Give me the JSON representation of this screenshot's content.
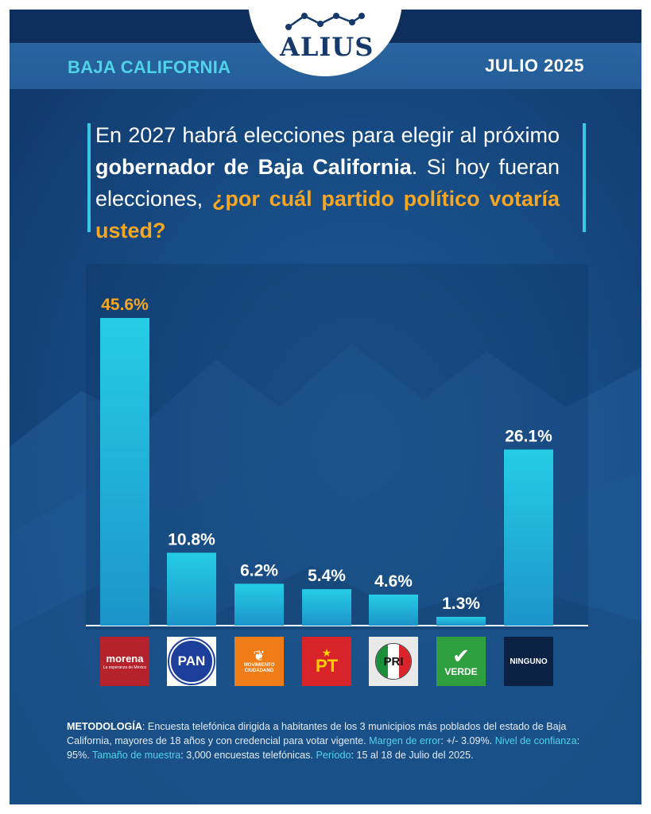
{
  "header": {
    "brand": "ALIUS",
    "region": "BAJA CALIFORNIA",
    "date": "JULIO 2025"
  },
  "question": {
    "part1": "En 2027 habrá elecciones para elegir al próximo ",
    "bold": "gobernador de Baja California",
    "part2": ". Si hoy fueran elecciones, ",
    "highlight": "¿por cuál partido político votaría usted?"
  },
  "chart_data": {
    "type": "bar",
    "categories": [
      "morena",
      "PAN",
      "MOVIMIENTO CIUDADANO",
      "PT",
      "PRI",
      "VERDE",
      "NINGUNO"
    ],
    "values": [
      45.6,
      10.8,
      6.2,
      5.4,
      4.6,
      1.3,
      26.1
    ],
    "value_labels": [
      "45.6%",
      "10.8%",
      "6.2%",
      "5.4%",
      "4.6%",
      "1.3%",
      "26.1%"
    ],
    "title": "",
    "xlabel": "",
    "ylabel": "",
    "ylim": [
      0,
      50
    ],
    "grid": false,
    "highlight_color": "#f5a623",
    "bar_color": "#22c4df"
  },
  "party_logos": {
    "morena": "morena",
    "morena_tagline": "La esperanza de México",
    "pan": "PAN",
    "mc": "MOVIMIENTO CIUDADANO",
    "pt": "PT",
    "pri": "PRI",
    "verde": "VERDE",
    "ninguno": "NINGUNO"
  },
  "methodology": {
    "k1": "METODOLOGÍA",
    "t1": ": Encuesta telefónica dirigida a habitantes de los 3 municipios más poblados del estado de Baja California, mayores de 18 años y con credencial para votar vigente. ",
    "k2": "Margen de error",
    "t2": ": +/- 3.09%. ",
    "k3": "Nivel de confianza",
    "t3": ": 95%. ",
    "k4": "Tamaño de muestra",
    "t4": ": 3,000 encuestas telefónicas. ",
    "k5": "Período",
    "t5": ": 15  al 18 de Julio del 2025."
  }
}
